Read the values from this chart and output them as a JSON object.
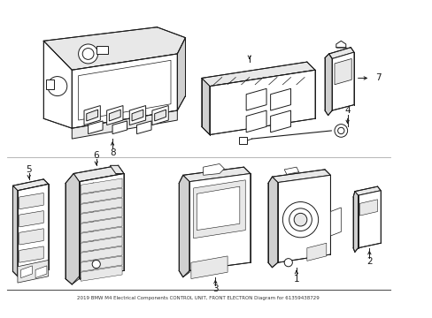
{
  "title": "2019 BMW M4 Electrical Components CONTROL UNIT, FRONT ELECTRON Diagram for 61359438729",
  "bg": "#ffffff",
  "lc": "#1a1a1a",
  "gray1": "#e8e8e8",
  "gray2": "#d0d0d0",
  "gray3": "#b8b8b8",
  "fig_w": 4.89,
  "fig_h": 3.6,
  "dpi": 100
}
